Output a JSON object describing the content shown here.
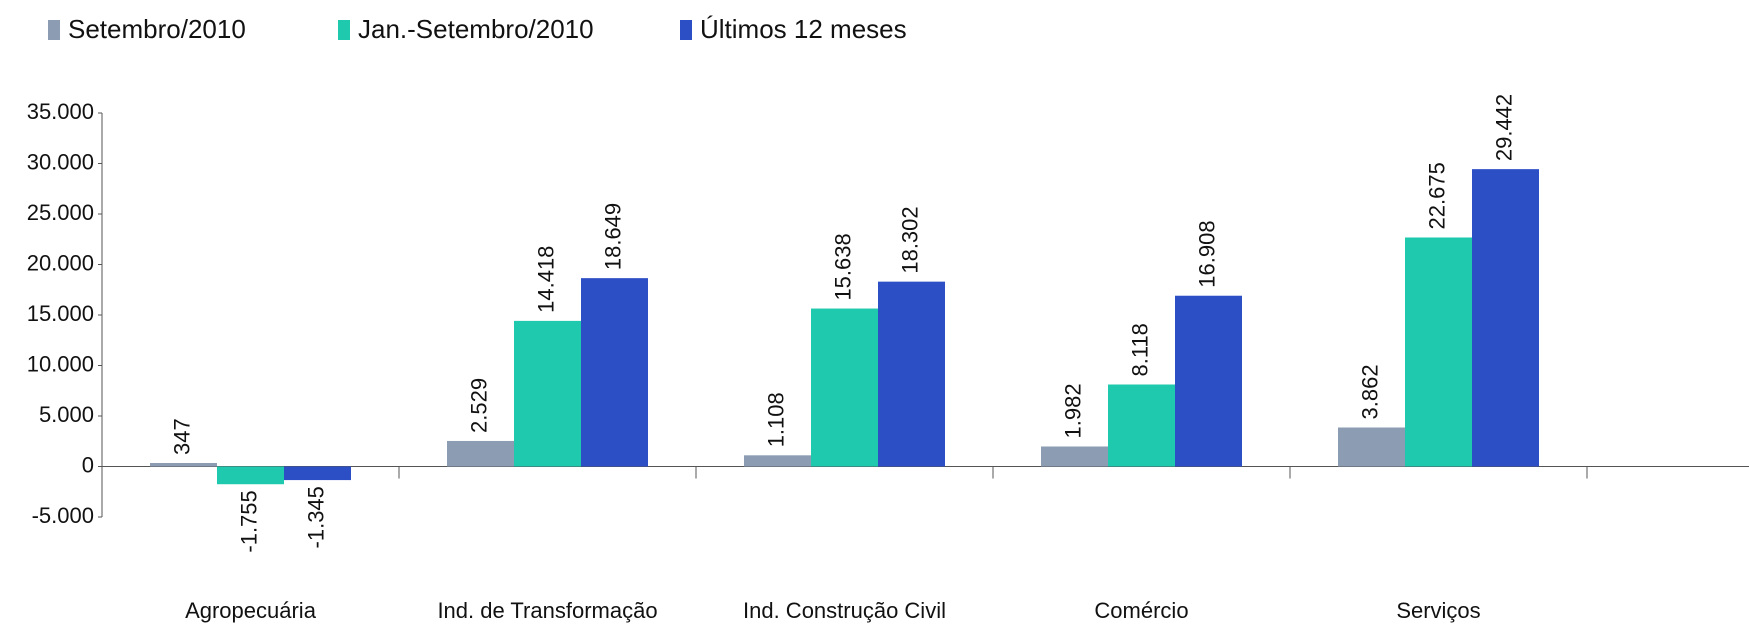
{
  "chart_data": {
    "type": "bar",
    "categories": [
      "Agropecuária",
      "Ind. de Transformação",
      "Ind. Construção Civil",
      "Comércio",
      "Serviços"
    ],
    "series": [
      {
        "name": "Setembro/2010",
        "color": "#8c9db3",
        "values": [
          347,
          2529,
          1108,
          1982,
          3862
        ],
        "value_labels": [
          "347",
          "2.529",
          "1.108",
          "1.982",
          "3.862"
        ]
      },
      {
        "name": "Jan.-Setembro/2010",
        "color": "#1ec9ae",
        "values": [
          -1755,
          14418,
          15638,
          8118,
          22675
        ],
        "value_labels": [
          "-1.755",
          "14.418",
          "15.638",
          "8.118",
          "22.675"
        ]
      },
      {
        "name": "Últimos 12 meses",
        "color": "#2c4fc6",
        "values": [
          -1345,
          18649,
          18302,
          16908,
          29442
        ],
        "value_labels": [
          "-1.345",
          "18.649",
          "18.302",
          "16.908",
          "29.442"
        ]
      }
    ],
    "ylim": [
      -5000,
      35000
    ],
    "yticks": [
      {
        "value": -5000,
        "label": "-5.000"
      },
      0,
      {
        "value": 5000,
        "label": "5.000"
      },
      {
        "value": 10000,
        "label": "10.000"
      },
      {
        "value": 15000,
        "label": "15.000"
      },
      {
        "value": 20000,
        "label": "20.000"
      },
      {
        "value": 25000,
        "label": "25.000"
      },
      {
        "value": 30000,
        "label": "30.000"
      },
      {
        "value": 35000,
        "label": "35.000"
      }
    ],
    "legend": "top"
  }
}
